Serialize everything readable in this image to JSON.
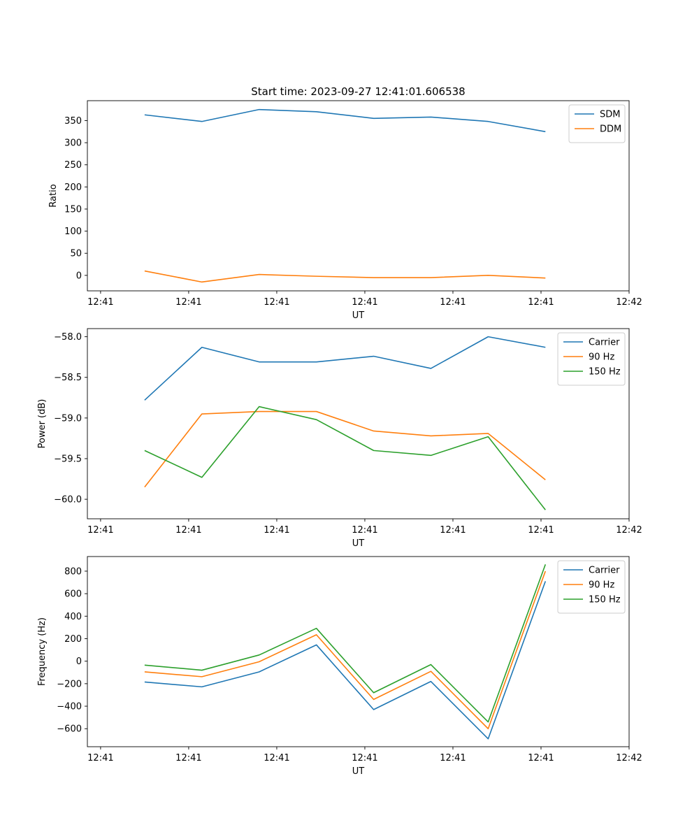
{
  "title": "Start time: 2023-09-27 12:41:01.606538",
  "colors": {
    "blue": "#1f77b4",
    "orange": "#ff7f0e",
    "green": "#2ca02c"
  },
  "chart_data": [
    {
      "type": "line",
      "title": "Start time: 2023-09-27 12:41:01.606538",
      "xlabel": "UT",
      "ylabel": "Ratio",
      "x": [
        0.5,
        1.15,
        1.8,
        2.45,
        3.1,
        3.75,
        4.4,
        5.05
      ],
      "xlim": [
        -0.15,
        6.0
      ],
      "xticks": [
        0,
        1,
        2,
        3,
        4,
        5,
        6
      ],
      "xtick_labels": [
        "12:41",
        "12:41",
        "12:41",
        "12:41",
        "12:41",
        "12:41",
        "12:42"
      ],
      "ylim": [
        -35,
        395
      ],
      "yticks": [
        0,
        50,
        100,
        150,
        200,
        250,
        300,
        350
      ],
      "ytick_labels": [
        "0",
        "50",
        "100",
        "150",
        "200",
        "250",
        "300",
        "350"
      ],
      "legend": "top-right",
      "series": [
        {
          "name": "SDM",
          "color": "#1f77b4",
          "values": [
            363,
            348,
            375,
            370,
            355,
            358,
            348,
            325
          ]
        },
        {
          "name": "DDM",
          "color": "#ff7f0e",
          "values": [
            10,
            -15,
            2,
            -2,
            -5,
            -5,
            0,
            -6
          ]
        }
      ]
    },
    {
      "type": "line",
      "xlabel": "UT",
      "ylabel": "Power (dB)",
      "x": [
        0.5,
        1.15,
        1.8,
        2.45,
        3.1,
        3.75,
        4.4,
        5.05
      ],
      "xlim": [
        -0.15,
        6.0
      ],
      "xticks": [
        0,
        1,
        2,
        3,
        4,
        5,
        6
      ],
      "xtick_labels": [
        "12:41",
        "12:41",
        "12:41",
        "12:41",
        "12:41",
        "12:41",
        "12:42"
      ],
      "ylim": [
        -60.24,
        -57.9
      ],
      "yticks": [
        -60.0,
        -59.5,
        -59.0,
        -58.5,
        -58.0
      ],
      "ytick_labels": [
        "−60.0",
        "−59.5",
        "−59.0",
        "−58.5",
        "−58.0"
      ],
      "legend": "top-right",
      "series": [
        {
          "name": "Carrier",
          "color": "#1f77b4",
          "values": [
            -58.78,
            -58.13,
            -58.31,
            -58.31,
            -58.24,
            -58.39,
            -58.0,
            -58.13
          ]
        },
        {
          "name": "90 Hz",
          "color": "#ff7f0e",
          "values": [
            -59.85,
            -58.95,
            -58.92,
            -58.92,
            -59.16,
            -59.22,
            -59.19,
            -59.76
          ]
        },
        {
          "name": "150 Hz",
          "color": "#2ca02c",
          "values": [
            -59.4,
            -59.73,
            -58.86,
            -59.02,
            -59.4,
            -59.46,
            -59.23,
            -60.13
          ]
        }
      ]
    },
    {
      "type": "line",
      "xlabel": "UT",
      "ylabel": "Frequency (Hz)",
      "x": [
        0.5,
        1.15,
        1.8,
        2.45,
        3.1,
        3.75,
        4.4,
        5.05
      ],
      "xlim": [
        -0.15,
        6.0
      ],
      "xticks": [
        0,
        1,
        2,
        3,
        4,
        5,
        6
      ],
      "xtick_labels": [
        "12:41",
        "12:41",
        "12:41",
        "12:41",
        "12:41",
        "12:41",
        "12:42"
      ],
      "ylim": [
        -760,
        930
      ],
      "yticks": [
        -600,
        -400,
        -200,
        0,
        200,
        400,
        600,
        800
      ],
      "ytick_labels": [
        "−600",
        "−400",
        "−200",
        "0",
        "200",
        "400",
        "600",
        "800"
      ],
      "legend": "top-right",
      "series": [
        {
          "name": "Carrier",
          "color": "#1f77b4",
          "values": [
            -185,
            -228,
            -95,
            145,
            -430,
            -180,
            -690,
            710
          ]
        },
        {
          "name": "90 Hz",
          "color": "#ff7f0e",
          "values": [
            -95,
            -138,
            -5,
            235,
            -340,
            -90,
            -600,
            800
          ]
        },
        {
          "name": "150 Hz",
          "color": "#2ca02c",
          "values": [
            -35,
            -80,
            55,
            292,
            -280,
            -30,
            -540,
            860
          ]
        }
      ]
    }
  ]
}
